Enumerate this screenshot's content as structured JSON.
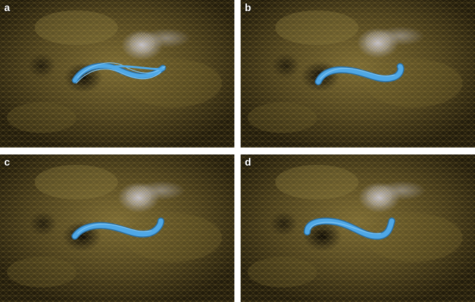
{
  "figure": {
    "panels": [
      {
        "label": "a"
      },
      {
        "label": "b"
      },
      {
        "label": "c"
      },
      {
        "label": "d"
      }
    ]
  },
  "colors": {
    "mesh": "#c9a84a",
    "background": "#141109",
    "flux_rope": "#4fa8e6",
    "flux_rope_dark": "#2b6fa3",
    "bright_patch": "#c8c7d8",
    "sunspot": "#0b0905"
  }
}
